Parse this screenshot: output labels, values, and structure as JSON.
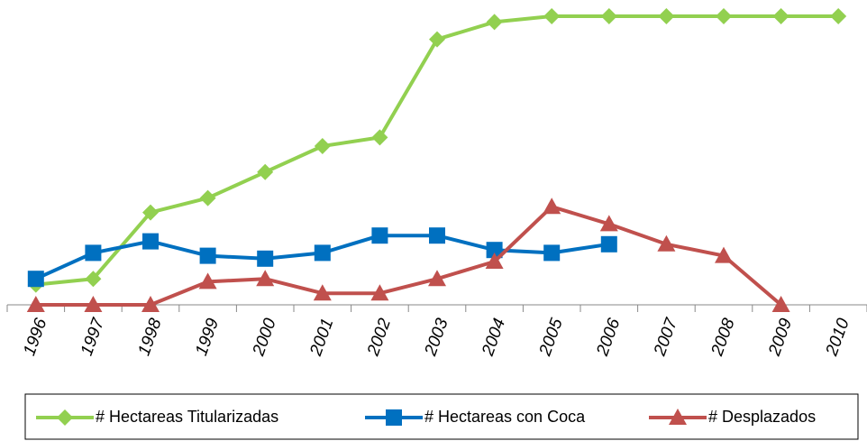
{
  "chart_data": {
    "type": "line",
    "categories": [
      "1996",
      "1997",
      "1998",
      "1999",
      "2000",
      "2001",
      "2002",
      "2003",
      "2004",
      "2005",
      "2006",
      "2007",
      "2008",
      "2009",
      "2010"
    ],
    "ylim": [
      0,
      100
    ],
    "series": [
      {
        "name": "# Hectareas Titularizadas",
        "color": "#92d050",
        "marker": "diamond",
        "values": [
          7,
          9,
          32,
          37,
          46,
          55,
          58,
          92,
          98,
          100,
          100,
          100,
          100,
          100,
          100
        ]
      },
      {
        "name": "# Hectareas con Coca",
        "color": "#0070c0",
        "marker": "square",
        "values": [
          9,
          18,
          22,
          17,
          16,
          18,
          24,
          24,
          19,
          18,
          21,
          null,
          null,
          null,
          null
        ]
      },
      {
        "name": "# Desplazados",
        "color": "#c0504d",
        "marker": "triangle",
        "values": [
          0,
          0,
          0,
          8,
          9,
          4,
          4,
          9,
          15,
          34,
          28,
          21,
          17,
          0,
          null
        ]
      }
    ]
  }
}
